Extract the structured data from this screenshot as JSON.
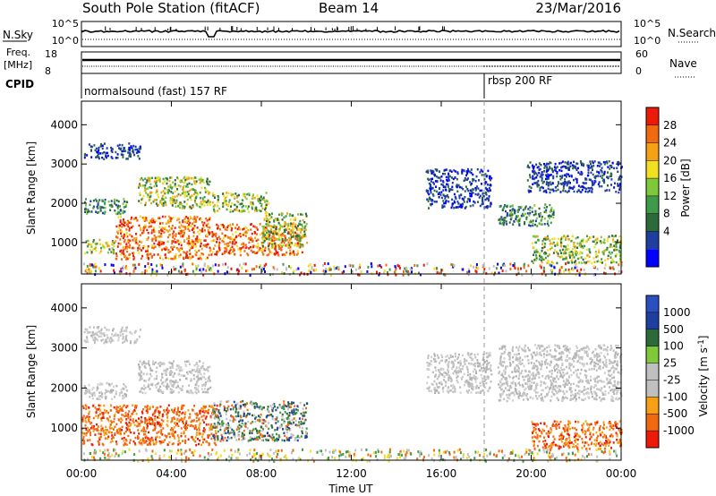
{
  "header": {
    "station": "South Pole Station (fitACF)",
    "beam": "Beam 14",
    "date": "23/Mar/2016"
  },
  "top_panels": {
    "nsky_label": "N.Sky",
    "nsky_ticks": [
      "10^5",
      "10^0"
    ],
    "nsearch_label": "N.Search",
    "nsearch_ticks": [
      "10^5",
      "10^0"
    ],
    "freq_label_1": "Freq.",
    "freq_label_2": "[MHz]",
    "freq_ticks": [
      "18",
      "8"
    ],
    "nave_label": "Nave",
    "nave_ticks": [
      "60",
      "0"
    ],
    "cpid_label": "CPID",
    "cpid_segments": [
      {
        "label": "normalsound (fast) 157 RF",
        "start_hour": 0
      },
      {
        "label": "rbsp 200 RF",
        "start_hour": 18
      }
    ]
  },
  "chart_data": [
    {
      "type": "heatmap",
      "title": "",
      "xlabel": "",
      "ylabel": "Slant Range [km]",
      "x_range_hours": [
        0,
        24
      ],
      "ylim": [
        200,
        4600
      ],
      "yticks": [
        "1000",
        "2000",
        "3000",
        "4000"
      ],
      "colorbar": {
        "label": "Power [dB]",
        "ticks": [
          "28",
          "24",
          "20",
          "16",
          "12",
          "8",
          "4"
        ],
        "colors": [
          "#0000ff",
          "#1f3fa0",
          "#2c6a3a",
          "#3f9b4a",
          "#7fc83a",
          "#f0e020",
          "#f5a015",
          "#f26a10",
          "#ee1a08"
        ]
      },
      "scatter_regions": [
        {
          "t": [
            0.1,
            2.6
          ],
          "r": [
            3150,
            3550
          ],
          "value": "low"
        },
        {
          "t": [
            0.1,
            2.0
          ],
          "r": [
            1750,
            2150
          ],
          "value": "mid-low"
        },
        {
          "t": [
            0.1,
            1.5
          ],
          "r": [
            750,
            1100
          ],
          "value": "mid"
        },
        {
          "t": [
            1.5,
            5.8
          ],
          "r": [
            600,
            1700
          ],
          "value": "high"
        },
        {
          "t": [
            2.5,
            5.7
          ],
          "r": [
            1900,
            2700
          ],
          "value": "mid"
        },
        {
          "t": [
            5.8,
            9.8
          ],
          "r": [
            700,
            1500
          ],
          "value": "high"
        },
        {
          "t": [
            5.8,
            8.3
          ],
          "r": [
            1800,
            2300
          ],
          "value": "mid"
        },
        {
          "t": [
            8.0,
            10.0
          ],
          "r": [
            900,
            1800
          ],
          "value": "mid"
        },
        {
          "t": [
            15.3,
            18.2
          ],
          "r": [
            1900,
            2900
          ],
          "value": "low"
        },
        {
          "t": [
            18.5,
            21.0
          ],
          "r": [
            1450,
            2000
          ],
          "value": "mid-low"
        },
        {
          "t": [
            19.8,
            24.0
          ],
          "r": [
            2300,
            3100
          ],
          "value": "low"
        },
        {
          "t": [
            20.0,
            24.0
          ],
          "r": [
            500,
            1200
          ],
          "value": "mid"
        },
        {
          "t": [
            0.0,
            24.0
          ],
          "r": [
            200,
            500
          ],
          "value": "noise"
        }
      ]
    },
    {
      "type": "heatmap",
      "title": "",
      "xlabel": "Time UT",
      "ylabel": "Slant Range [km]",
      "x_range_hours": [
        0,
        24
      ],
      "xticks": [
        "00:00",
        "04:00",
        "08:00",
        "12:00",
        "16:00",
        "20:00",
        "00:00"
      ],
      "ylim": [
        200,
        4600
      ],
      "yticks": [
        "1000",
        "2000",
        "3000",
        "4000"
      ],
      "colorbar": {
        "label": "Velocity [m s",
        "label_sup": "-1",
        "label_end": "]",
        "ticks": [
          "1000",
          "500",
          "100",
          "25",
          "-25",
          "-100",
          "-500",
          "-1000"
        ],
        "colors": [
          "#ee1a08",
          "#f26a10",
          "#f5a015",
          "#c0c0c0",
          "#c0c0c0",
          "#7fc83a",
          "#2c6a3a",
          "#1f3fa0",
          "#2a50c0"
        ]
      },
      "scatter_regions": [
        {
          "t": [
            0.1,
            2.6
          ],
          "r": [
            3150,
            3550
          ],
          "value": "ground"
        },
        {
          "t": [
            0.1,
            2.0
          ],
          "r": [
            1750,
            2150
          ],
          "value": "ground"
        },
        {
          "t": [
            0.0,
            6.0
          ],
          "r": [
            600,
            1600
          ],
          "value": "neg"
        },
        {
          "t": [
            2.5,
            5.7
          ],
          "r": [
            1900,
            2700
          ],
          "value": "ground"
        },
        {
          "t": [
            5.8,
            10.0
          ],
          "r": [
            700,
            1700
          ],
          "value": "mixed"
        },
        {
          "t": [
            15.3,
            18.2
          ],
          "r": [
            1900,
            2900
          ],
          "value": "ground"
        },
        {
          "t": [
            18.5,
            24.0
          ],
          "r": [
            1700,
            3100
          ],
          "value": "ground"
        },
        {
          "t": [
            20.0,
            24.0
          ],
          "r": [
            500,
            1200
          ],
          "value": "neg"
        },
        {
          "t": [
            0.0,
            24.0
          ],
          "r": [
            200,
            500
          ],
          "value": "noise"
        }
      ]
    }
  ]
}
